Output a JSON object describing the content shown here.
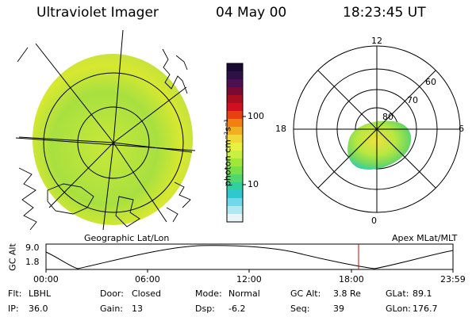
{
  "header": {
    "instrument": "Ultraviolet Imager",
    "date": "04 May 00",
    "time": "18:23:45 UT"
  },
  "colorbar": {
    "unit_label": "photon cm⁻²s⁻¹",
    "ticks": [
      "100",
      "10"
    ],
    "colors": [
      "#1a0a33",
      "#2e1046",
      "#4b1052",
      "#7a0a34",
      "#a80e1e",
      "#d01020",
      "#e84010",
      "#f08010",
      "#f0b020",
      "#f0d838",
      "#e8f040",
      "#c8f040",
      "#a0e838",
      "#78e048",
      "#50d870",
      "#30d0a0",
      "#30c8d0",
      "#70d8e8",
      "#b0e8f0",
      "#e8f4f8"
    ]
  },
  "left_map": {
    "caption": "Geographic Lat/Lon"
  },
  "right_map": {
    "caption": "Apex MLat/MLT",
    "mlt_labels": [
      "12",
      "18",
      "6",
      "0"
    ],
    "lat_labels": [
      "60",
      "70",
      "80"
    ]
  },
  "altitude_plot": {
    "ylabel": "GC Alt",
    "yticks": [
      "9.0",
      "1.8"
    ],
    "xticks": [
      "00:00",
      "06:00",
      "12:00",
      "18:00",
      "23:59"
    ],
    "marker_time": "18:23",
    "marker_color": "#d00000"
  },
  "status": {
    "rows": [
      [
        {
          "label": "Flt:",
          "value": "LBHL"
        },
        {
          "label": "Door:",
          "value": "Closed"
        },
        {
          "label": "Mode:",
          "value": "Normal"
        },
        {
          "label": "GC Alt:",
          "value": "3.8 Re"
        },
        {
          "label": "GLat:",
          "value": "89.1"
        }
      ],
      [
        {
          "label": "IP:",
          "value": "36.0"
        },
        {
          "label": "Gain:",
          "value": "13"
        },
        {
          "label": "Dsp:",
          "value": "-6.2"
        },
        {
          "label": "Seq:",
          "value": "39"
        },
        {
          "label": "GLon:",
          "value": "176.7"
        }
      ]
    ]
  }
}
